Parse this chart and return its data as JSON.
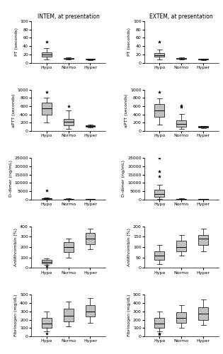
{
  "title_left": "INTEM, at presentation",
  "title_right": "EXTEM, at presentation",
  "groups": [
    "Hypo",
    "Normo",
    "Hyper"
  ],
  "plots": {
    "PT_INTEM": {
      "Hypo": {
        "med": 20,
        "q1": 15,
        "q3": 25,
        "whislo": 8,
        "whishi": 35,
        "fliers": [
          50
        ]
      },
      "Normo": {
        "med": 10,
        "q1": 9,
        "q3": 11,
        "whislo": 8,
        "whishi": 13,
        "fliers": []
      },
      "Hyper": {
        "med": 8,
        "q1": 7,
        "q3": 9,
        "whislo": 6,
        "whishi": 10,
        "fliers": []
      }
    },
    "PT_EXTEM": {
      "Hypo": {
        "med": 18,
        "q1": 14,
        "q3": 24,
        "whislo": 8,
        "whishi": 32,
        "fliers": [
          50
        ]
      },
      "Normo": {
        "med": 10,
        "q1": 9,
        "q3": 11,
        "whislo": 7,
        "whishi": 13,
        "fliers": []
      },
      "Hyper": {
        "med": 8,
        "q1": 7,
        "q3": 9,
        "whislo": 6,
        "whishi": 10,
        "fliers": []
      }
    },
    "aPTT_INTEM": {
      "Hypo": {
        "med": 550,
        "q1": 400,
        "q3": 680,
        "whislo": 200,
        "whishi": 800,
        "fliers": [
          950
        ]
      },
      "Normo": {
        "med": 220,
        "q1": 140,
        "q3": 300,
        "whislo": 60,
        "whishi": 500,
        "fliers": [
          600
        ]
      },
      "Hyper": {
        "med": 120,
        "q1": 100,
        "q3": 140,
        "whislo": 80,
        "whishi": 160,
        "fliers": []
      }
    },
    "aPTT_EXTEM": {
      "Hypo": {
        "med": 500,
        "q1": 350,
        "q3": 650,
        "whislo": 150,
        "whishi": 780,
        "fliers": [
          950
        ]
      },
      "Normo": {
        "med": 180,
        "q1": 100,
        "q3": 260,
        "whislo": 50,
        "whishi": 420,
        "fliers": [
          580,
          620
        ]
      },
      "Hyper": {
        "med": 100,
        "q1": 85,
        "q3": 115,
        "whislo": 70,
        "whishi": 130,
        "fliers": []
      }
    },
    "Ddimer_INTEM": {
      "Hypo": {
        "med": 600,
        "q1": 400,
        "q3": 800,
        "whislo": 200,
        "whishi": 1200,
        "fliers": [
          5500
        ]
      },
      "Normo": {
        "med": 300,
        "q1": 200,
        "q3": 500,
        "whislo": 100,
        "whishi": 700,
        "fliers": []
      },
      "Hyper": {
        "med": 200,
        "q1": 100,
        "q3": 350,
        "whislo": 50,
        "whishi": 500,
        "fliers": []
      }
    },
    "Ddimer_EXTEM": {
      "Hypo": {
        "med": 3500,
        "q1": 1500,
        "q3": 6000,
        "whislo": 400,
        "whishi": 9000,
        "fliers": [
          14000,
          17000,
          25000
        ]
      },
      "Normo": {
        "med": 350,
        "q1": 200,
        "q3": 500,
        "whislo": 100,
        "whishi": 700,
        "fliers": []
      },
      "Hyper": {
        "med": 200,
        "q1": 100,
        "q3": 350,
        "whislo": 50,
        "whishi": 500,
        "fliers": []
      }
    },
    "AT_INTEM": {
      "Hypo": {
        "med": 60,
        "q1": 45,
        "q3": 75,
        "whislo": 30,
        "whishi": 90,
        "fliers": [
          15
        ]
      },
      "Normo": {
        "med": 200,
        "q1": 150,
        "q3": 250,
        "whislo": 100,
        "whishi": 280,
        "fliers": []
      },
      "Hyper": {
        "med": 280,
        "q1": 230,
        "q3": 340,
        "whislo": 180,
        "whishi": 380,
        "fliers": []
      }
    },
    "AT_EXTEM": {
      "Hypo": {
        "med": 60,
        "q1": 40,
        "q3": 80,
        "whislo": 20,
        "whishi": 110,
        "fliers": []
      },
      "Normo": {
        "med": 100,
        "q1": 80,
        "q3": 130,
        "whislo": 60,
        "whishi": 160,
        "fliers": []
      },
      "Hyper": {
        "med": 140,
        "q1": 110,
        "q3": 160,
        "whislo": 80,
        "whishi": 190,
        "fliers": []
      }
    },
    "Fibrinogen_INTEM": {
      "Hypo": {
        "med": 150,
        "q1": 100,
        "q3": 220,
        "whislo": 60,
        "whishi": 300,
        "fliers": [
          30
        ]
      },
      "Normo": {
        "med": 250,
        "q1": 180,
        "q3": 330,
        "whislo": 120,
        "whishi": 420,
        "fliers": []
      },
      "Hyper": {
        "med": 300,
        "q1": 240,
        "q3": 380,
        "whislo": 160,
        "whishi": 460,
        "fliers": []
      }
    },
    "Fibrinogen_EXTEM": {
      "Hypo": {
        "med": 150,
        "q1": 100,
        "q3": 220,
        "whislo": 60,
        "whishi": 300,
        "fliers": [
          30,
          25
        ]
      },
      "Normo": {
        "med": 220,
        "q1": 160,
        "q3": 290,
        "whislo": 100,
        "whishi": 380,
        "fliers": []
      },
      "Hyper": {
        "med": 270,
        "q1": 200,
        "q3": 350,
        "whislo": 140,
        "whishi": 440,
        "fliers": []
      }
    }
  },
  "ylims": {
    "PT": [
      0,
      100
    ],
    "aPTT": [
      0,
      1000
    ],
    "Ddimer_L": [
      0,
      25000
    ],
    "Ddimer_R": [
      0,
      25000
    ],
    "AT_L": [
      0,
      400
    ],
    "AT_R": [
      0,
      200
    ],
    "Fibrinogen": [
      0,
      500
    ]
  },
  "yticks": {
    "PT": [
      0,
      20,
      40,
      60,
      80,
      100
    ],
    "aPTT": [
      0,
      200,
      400,
      600,
      800,
      1000
    ],
    "Ddimer_L": [
      0,
      5000,
      10000,
      15000,
      20000,
      25000
    ],
    "Ddimer_R": [
      0,
      5000,
      10000,
      15000,
      20000,
      25000
    ],
    "AT_L": [
      0,
      100,
      200,
      300,
      400
    ],
    "AT_R": [
      0,
      50,
      100,
      150,
      200
    ],
    "Fibrinogen": [
      0,
      100,
      200,
      300,
      400,
      500
    ]
  }
}
